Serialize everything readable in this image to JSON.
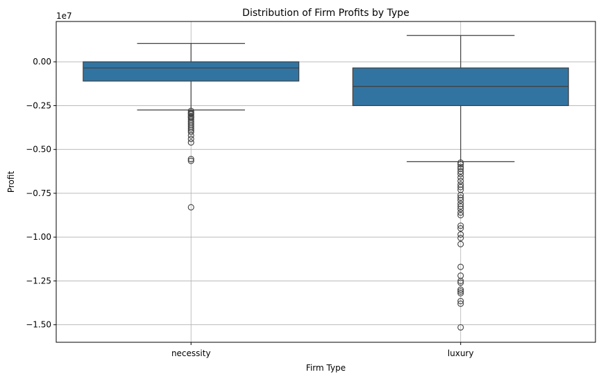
{
  "chart_data": {
    "type": "box",
    "title": "Distribution of Firm Profits by Type",
    "xlabel": "Firm Type",
    "ylabel": "Profit",
    "y_multiplier_label": "1e7",
    "y_scale_factor": 10000000,
    "ylim": [
      -1.6,
      0.23
    ],
    "y_ticks": [
      0.0,
      -0.25,
      -0.5,
      -0.75,
      -1.0,
      -1.25,
      -1.5
    ],
    "y_tick_labels": [
      "0.00",
      "−0.25",
      "−0.50",
      "−0.75",
      "−1.00",
      "−1.25",
      "−1.50"
    ],
    "grid": true,
    "box_color": "#3274a1",
    "line_color": "#3f3f3f",
    "categories": [
      "necessity",
      "luxury"
    ],
    "boxes": [
      {
        "category": "necessity",
        "whisker_high": 0.105,
        "q3": 0.0,
        "median": -0.035,
        "q1": -0.11,
        "whisker_low": -0.275,
        "outliers": [
          -0.28,
          -0.29,
          -0.295,
          -0.3,
          -0.31,
          -0.315,
          -0.32,
          -0.33,
          -0.34,
          -0.35,
          -0.36,
          -0.37,
          -0.38,
          -0.39,
          -0.4,
          -0.42,
          -0.44,
          -0.46,
          -0.555,
          -0.565,
          -0.83
        ]
      },
      {
        "category": "luxury",
        "whisker_high": 0.15,
        "q3": -0.035,
        "median": -0.14,
        "q1": -0.25,
        "whisker_low": -0.57,
        "outliers": [
          -0.575,
          -0.585,
          -0.6,
          -0.61,
          -0.625,
          -0.64,
          -0.66,
          -0.68,
          -0.7,
          -0.715,
          -0.73,
          -0.76,
          -0.775,
          -0.79,
          -0.81,
          -0.825,
          -0.84,
          -0.86,
          -0.875,
          -0.935,
          -0.95,
          -0.985,
          -1.005,
          -1.04,
          -1.17,
          -1.22,
          -1.25,
          -1.26,
          -1.3,
          -1.31,
          -1.32,
          -1.365,
          -1.38,
          -1.515
        ]
      }
    ]
  }
}
